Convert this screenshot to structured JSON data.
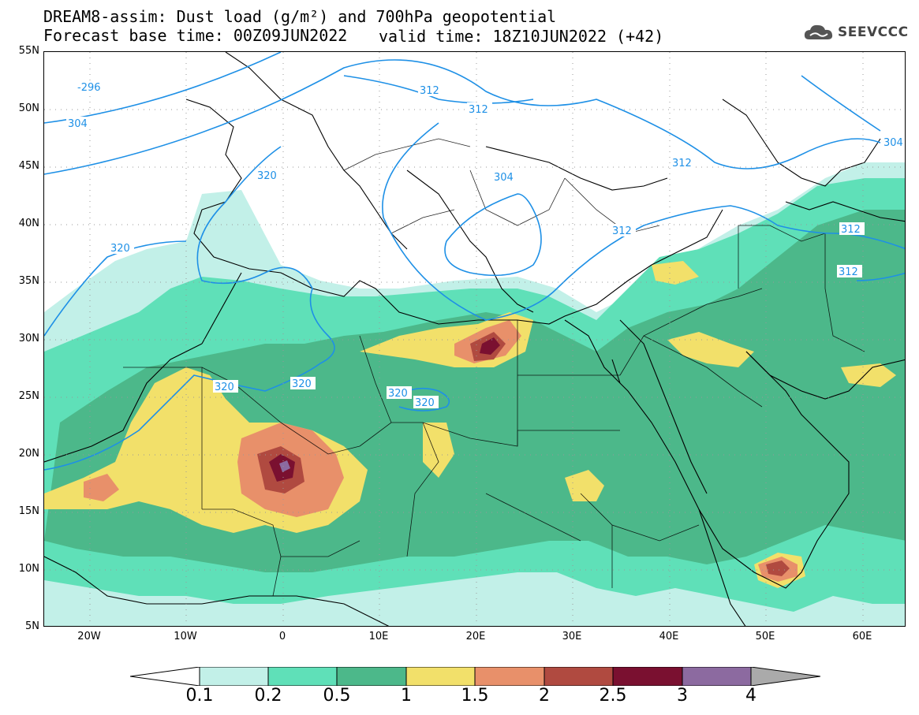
{
  "header": {
    "title_line1": "DREAM8-assim: Dust load (g/m²) and 700hPa geopotential",
    "title_line2": "Forecast base time: 00Z09JUN2022",
    "valid_time": "valid time: 18Z10JUN2022 (+42)",
    "logo_text": "SEEVCCC"
  },
  "map": {
    "lat_labels": [
      "55N",
      "50N",
      "45N",
      "40N",
      "35N",
      "30N",
      "25N",
      "20N",
      "15N",
      "10N",
      "5N"
    ],
    "lon_labels": [
      "20W",
      "10W",
      "0",
      "10E",
      "20E",
      "30E",
      "40E",
      "50E",
      "60E"
    ],
    "contour_labels": [
      "-296",
      "304",
      "312",
      "312",
      "312",
      "320",
      "320",
      "320",
      "320",
      "320",
      "304",
      "312",
      "312",
      "312",
      "304",
      "320"
    ],
    "colors": {
      "land_outline": "#000000",
      "contour": "#1e90e6",
      "grid_dots": "#999999"
    }
  },
  "legend": {
    "levels": [
      "0.1",
      "0.2",
      "0.5",
      "1",
      "1.5",
      "2",
      "2.5",
      "3",
      "4"
    ],
    "colors": [
      "#c2f0e8",
      "#5fe0b8",
      "#4cb88a",
      "#f2e06a",
      "#e8906a",
      "#b04a40",
      "#7a1030",
      "#8c6aa0"
    ],
    "over_color": "#aaaaaa",
    "under_color": "#ffffff"
  }
}
